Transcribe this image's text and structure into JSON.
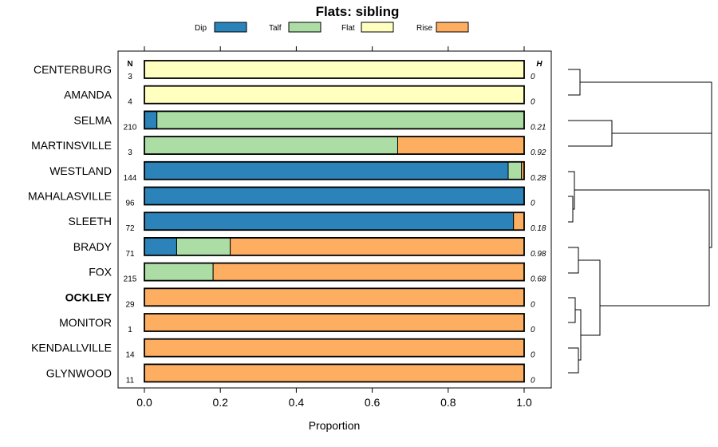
{
  "chart_data": {
    "type": "bar",
    "orientation": "horizontal",
    "stacked": true,
    "title": "Flats: sibling",
    "xlabel": "Proportion",
    "ylabel": "",
    "xlim": [
      0,
      1
    ],
    "x_ticks": [
      "0.0",
      "0.2",
      "0.4",
      "0.6",
      "0.8",
      "1.0"
    ],
    "x_tick_values": [
      0,
      0.2,
      0.4,
      0.6,
      0.8,
      1.0
    ],
    "n_header": "N",
    "h_header": "H",
    "legend_position": "top",
    "series": [
      {
        "name": "Dip",
        "color": "#2b83ba"
      },
      {
        "name": "Talf",
        "color": "#abdda4"
      },
      {
        "name": "Flat",
        "color": "#ffffbf"
      },
      {
        "name": "Rise",
        "color": "#fdae61"
      }
    ],
    "categories": [
      {
        "label": "CENTERBURG",
        "bold": false,
        "n": "3",
        "h": "0",
        "values": [
          0,
          0,
          1,
          0
        ]
      },
      {
        "label": "AMANDA",
        "bold": false,
        "n": "4",
        "h": "0",
        "values": [
          0,
          0,
          1,
          0
        ]
      },
      {
        "label": "SELMA",
        "bold": false,
        "n": "210",
        "h": "0.21",
        "values": [
          0.033,
          0.967,
          0,
          0
        ]
      },
      {
        "label": "MARTINSVILLE",
        "bold": false,
        "n": "3",
        "h": "0.92",
        "values": [
          0,
          0.667,
          0,
          0.333
        ]
      },
      {
        "label": "WESTLAND",
        "bold": false,
        "n": "144",
        "h": "0.28",
        "values": [
          0.958,
          0.035,
          0,
          0.007
        ]
      },
      {
        "label": "MAHALASVILLE",
        "bold": false,
        "n": "96",
        "h": "0",
        "values": [
          1,
          0,
          0,
          0
        ]
      },
      {
        "label": "SLEETH",
        "bold": false,
        "n": "72",
        "h": "0.18",
        "values": [
          0.972,
          0,
          0,
          0.028
        ]
      },
      {
        "label": "BRADY",
        "bold": false,
        "n": "71",
        "h": "0.98",
        "values": [
          0.085,
          0.141,
          0,
          0.774
        ]
      },
      {
        "label": "FOX",
        "bold": false,
        "n": "215",
        "h": "0.68",
        "values": [
          0,
          0.181,
          0,
          0.819
        ]
      },
      {
        "label": "OCKLEY",
        "bold": true,
        "n": "29",
        "h": "0",
        "values": [
          0,
          0,
          0,
          1
        ]
      },
      {
        "label": "MONITOR",
        "bold": false,
        "n": "1",
        "h": "0",
        "values": [
          0,
          0,
          0,
          1
        ]
      },
      {
        "label": "KENDALLVILLE",
        "bold": false,
        "n": "14",
        "h": "0",
        "values": [
          0,
          0,
          0,
          1
        ]
      },
      {
        "label": "GLYNWOOD",
        "bold": false,
        "n": "11",
        "h": "0",
        "values": [
          0,
          0,
          0,
          1
        ]
      }
    ]
  }
}
